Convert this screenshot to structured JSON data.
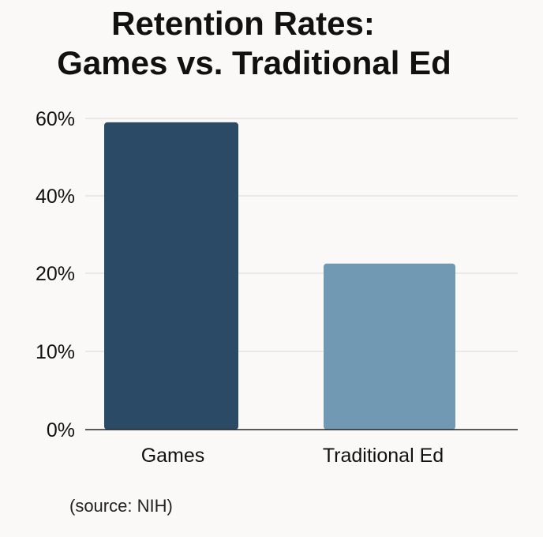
{
  "chart_data": {
    "type": "bar",
    "title_lines": [
      "Retention Rates:",
      "Games vs. Traditional Ed"
    ],
    "categories": [
      "Games",
      "Traditional Ed"
    ],
    "values": [
      59,
      22.5
    ],
    "bar_colors": [
      "#2b4a66",
      "#7199b3"
    ],
    "y_ticks": [
      {
        "value": 0,
        "label": "0%"
      },
      {
        "value": 10,
        "label": "10%"
      },
      {
        "value": 20,
        "label": "20%"
      },
      {
        "value": 40,
        "label": "40%"
      },
      {
        "value": 60,
        "label": "60%"
      }
    ],
    "xlabel": "",
    "ylabel": "",
    "ylim": [
      0,
      60
    ],
    "grid": true,
    "legend": "none"
  },
  "source_note": "(source: NIH)"
}
